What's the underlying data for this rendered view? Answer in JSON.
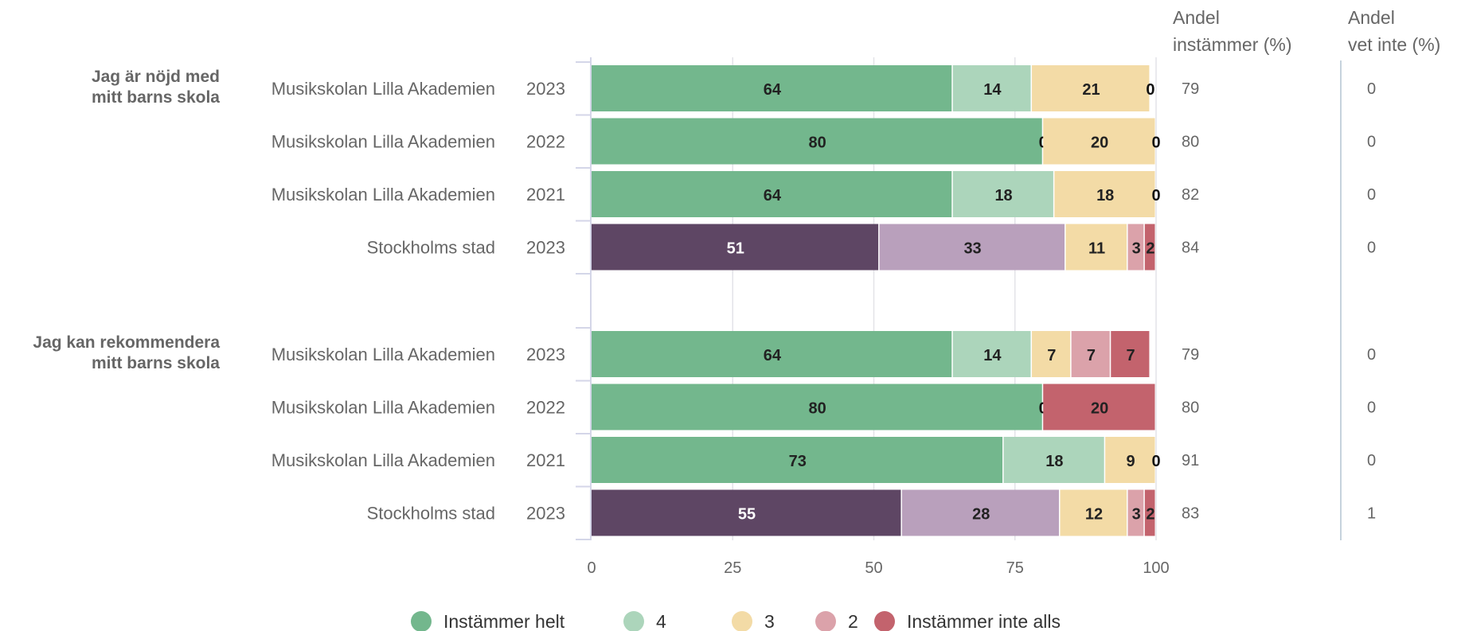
{
  "chart_data": {
    "type": "bar",
    "orientation": "horizontal",
    "stacked": true,
    "xlim": [
      0,
      100
    ],
    "xticks": [
      0,
      25,
      50,
      75,
      100
    ],
    "grid": true,
    "legend_position": "bottom",
    "legend": [
      {
        "name": "Instämmer helt",
        "color": "#73b78d"
      },
      {
        "name": "4",
        "color": "#acd5bb"
      },
      {
        "name": "3",
        "color": "#f3dba6"
      },
      {
        "name": "2",
        "color": "#dba2aa"
      },
      {
        "name": "Instämmer inte alls",
        "color": "#c3636d"
      }
    ],
    "column_headers": {
      "share_agree": [
        "Andel",
        "instämmer (%)"
      ],
      "share_dont_know": [
        "Andel",
        "vet inte (%)"
      ]
    },
    "groups": [
      {
        "question": [
          "Jag är nöjd med",
          "mitt barns skola"
        ],
        "rows": [
          {
            "unit": "Musikskolan Lilla Akademien",
            "year": "2023",
            "palette": "school",
            "values": [
              64,
              14,
              21,
              0,
              0
            ],
            "labels": [
              "64",
              "14",
              "21",
              "0",
              ""
            ],
            "share_agree": "79",
            "share_dont_know": "0"
          },
          {
            "unit": "Musikskolan Lilla Akademien",
            "year": "2022",
            "palette": "school",
            "values": [
              80,
              0,
              20,
              0,
              0
            ],
            "labels": [
              "80",
              "0",
              "20",
              "0",
              ""
            ],
            "share_agree": "80",
            "share_dont_know": "0"
          },
          {
            "unit": "Musikskolan Lilla Akademien",
            "year": "2021",
            "palette": "school",
            "values": [
              64,
              18,
              18,
              0,
              0
            ],
            "labels": [
              "64",
              "18",
              "18",
              "0",
              ""
            ],
            "share_agree": "82",
            "share_dont_know": "0"
          },
          {
            "unit": "Stockholms stad",
            "year": "2023",
            "palette": "city",
            "values": [
              51,
              33,
              11,
              3,
              2
            ],
            "labels": [
              "51",
              "33",
              "11",
              "3",
              "2"
            ],
            "share_agree": "84",
            "share_dont_know": "0"
          }
        ]
      },
      {
        "question": [
          "Jag kan rekommendera",
          "mitt barns skola"
        ],
        "rows": [
          {
            "unit": "Musikskolan Lilla Akademien",
            "year": "2023",
            "palette": "school",
            "values": [
              64,
              14,
              7,
              7,
              7
            ],
            "labels": [
              "64",
              "14",
              "7",
              "7",
              "7"
            ],
            "share_agree": "79",
            "share_dont_know": "0"
          },
          {
            "unit": "Musikskolan Lilla Akademien",
            "year": "2022",
            "palette": "school",
            "values": [
              80,
              0,
              0,
              0,
              20
            ],
            "labels": [
              "80",
              "0",
              "",
              "",
              "20"
            ],
            "share_agree": "80",
            "share_dont_know": "0"
          },
          {
            "unit": "Musikskolan Lilla Akademien",
            "year": "2021",
            "palette": "school",
            "values": [
              73,
              18,
              9,
              0,
              0
            ],
            "labels": [
              "73",
              "18",
              "9",
              "0",
              ""
            ],
            "share_agree": "91",
            "share_dont_know": "0"
          },
          {
            "unit": "Stockholms stad",
            "year": "2023",
            "palette": "city",
            "values": [
              55,
              28,
              12,
              3,
              2
            ],
            "labels": [
              "55",
              "28",
              "12",
              "3",
              "2"
            ],
            "share_agree": "83",
            "share_dont_know": "1"
          }
        ]
      }
    ],
    "palettes": {
      "school": [
        "#73b78d",
        "#acd5bb",
        "#f3dba6",
        "#dba2aa",
        "#c3636d"
      ],
      "city": [
        "#5e4664",
        "#b9a0bc",
        "#f3dba6",
        "#dba2aa",
        "#c3636d"
      ]
    },
    "label_colors": {
      "school": [
        "#222222",
        "#222222",
        "#222222",
        "#222222",
        "#222222"
      ],
      "city": [
        "#ffffff",
        "#222222",
        "#222222",
        "#222222",
        "#222222"
      ]
    }
  }
}
